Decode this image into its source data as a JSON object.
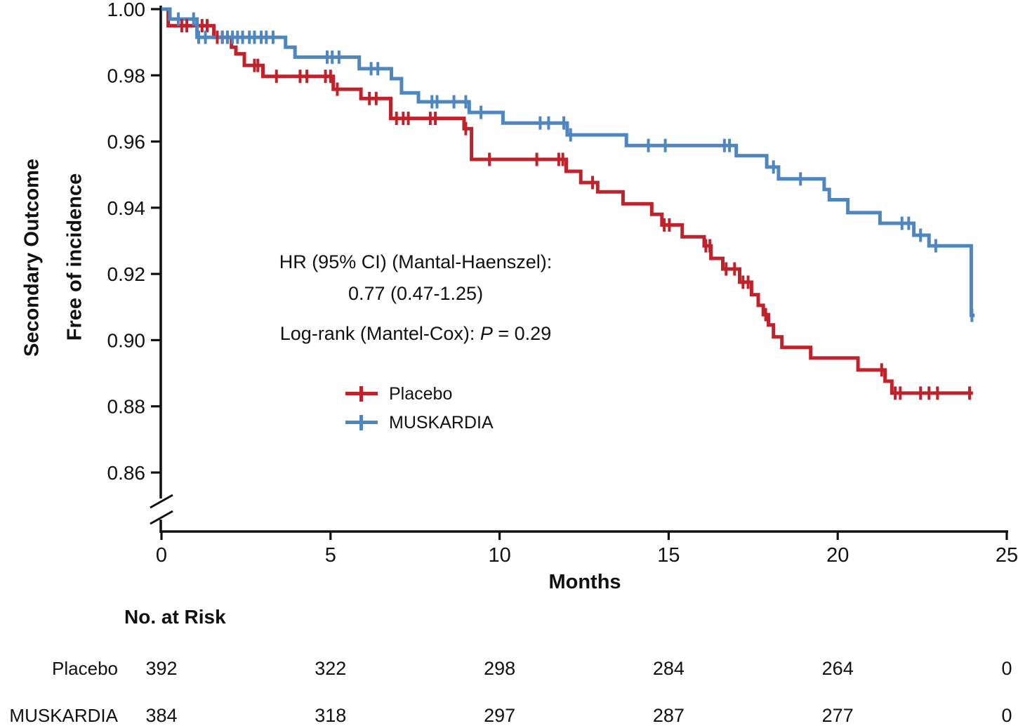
{
  "chart_data": {
    "type": "line",
    "variant": "kaplan_meier_step_curve",
    "title": "",
    "xlabel": "Months",
    "ylabel_line1": "Secondary Outcome",
    "ylabel_line2": "Free of incidence",
    "xlim": [
      0,
      25
    ],
    "ylim_shown": [
      0.86,
      1.0
    ],
    "y_axis_break": true,
    "grid": false,
    "legend_position": "inside-left, below annotation",
    "x_ticks": [
      "0",
      "5",
      "10",
      "15",
      "20",
      "25"
    ],
    "y_ticks": [
      "1.00",
      "0.98",
      "0.96",
      "0.94",
      "0.92",
      "0.90",
      "0.88",
      "0.86"
    ],
    "annotation": {
      "line1": "HR (95% CI) (Mantal-Haenszel):",
      "line2": "0.77 (0.47-1.25)",
      "line3_prefix": "Log-rank (Mantel-Cox): ",
      "line3_italic": "P",
      "line3_suffix": " = 0.29"
    },
    "axis_color": "#111111",
    "series": [
      {
        "name": "Placebo",
        "color": "#c0222b",
        "steps": [
          [
            0,
            1.0
          ],
          [
            0.2,
            0.995
          ],
          [
            1.55,
            0.9915
          ],
          [
            2.07,
            0.9885
          ],
          [
            2.2,
            0.9865
          ],
          [
            2.45,
            0.983
          ],
          [
            3.0,
            0.9797
          ],
          [
            5.08,
            0.9758
          ],
          [
            5.9,
            0.973
          ],
          [
            6.78,
            0.967
          ],
          [
            8.95,
            0.9639
          ],
          [
            9.17,
            0.9546
          ],
          [
            11.97,
            0.951
          ],
          [
            12.4,
            0.9476
          ],
          [
            12.9,
            0.9448
          ],
          [
            13.65,
            0.9412
          ],
          [
            14.5,
            0.938
          ],
          [
            14.8,
            0.9348
          ],
          [
            15.4,
            0.9312
          ],
          [
            16.05,
            0.9285
          ],
          [
            16.25,
            0.9247
          ],
          [
            16.6,
            0.9215
          ],
          [
            17.1,
            0.9175
          ],
          [
            17.45,
            0.9137
          ],
          [
            17.65,
            0.9105
          ],
          [
            17.8,
            0.9077
          ],
          [
            17.95,
            0.9046
          ],
          [
            18.1,
            0.901
          ],
          [
            18.35,
            0.8978
          ],
          [
            19.2,
            0.8946
          ],
          [
            20.6,
            0.891
          ],
          [
            21.4,
            0.8876
          ],
          [
            21.6,
            0.884
          ],
          [
            24.0,
            0.884
          ]
        ],
        "censors": [
          [
            0.6,
            0.995
          ],
          [
            0.75,
            0.995
          ],
          [
            1.2,
            0.995
          ],
          [
            1.35,
            0.995
          ],
          [
            1.65,
            0.9915
          ],
          [
            1.8,
            0.9915
          ],
          [
            1.95,
            0.9915
          ],
          [
            2.75,
            0.983
          ],
          [
            2.85,
            0.983
          ],
          [
            3.4,
            0.9797
          ],
          [
            4.1,
            0.9797
          ],
          [
            4.3,
            0.9797
          ],
          [
            4.85,
            0.9797
          ],
          [
            5.0,
            0.9797
          ],
          [
            5.2,
            0.9758
          ],
          [
            6.15,
            0.973
          ],
          [
            6.35,
            0.973
          ],
          [
            6.95,
            0.967
          ],
          [
            7.15,
            0.967
          ],
          [
            7.3,
            0.967
          ],
          [
            7.95,
            0.967
          ],
          [
            8.1,
            0.967
          ],
          [
            9.0,
            0.9639
          ],
          [
            9.7,
            0.9546
          ],
          [
            11.1,
            0.9546
          ],
          [
            11.75,
            0.9546
          ],
          [
            11.87,
            0.9546
          ],
          [
            12.75,
            0.9476
          ],
          [
            14.87,
            0.9348
          ],
          [
            15.02,
            0.9348
          ],
          [
            16.1,
            0.9285
          ],
          [
            16.22,
            0.9285
          ],
          [
            16.7,
            0.9215
          ],
          [
            16.95,
            0.9215
          ],
          [
            17.2,
            0.9175
          ],
          [
            17.35,
            0.9175
          ],
          [
            17.87,
            0.9077
          ],
          [
            21.3,
            0.891
          ],
          [
            21.7,
            0.884
          ],
          [
            21.85,
            0.884
          ],
          [
            22.45,
            0.884
          ],
          [
            22.7,
            0.884
          ],
          [
            22.95,
            0.884
          ],
          [
            23.9,
            0.884
          ]
        ]
      },
      {
        "name": "MUSKARDIA",
        "color": "#4e86c0",
        "steps": [
          [
            0,
            1.0
          ],
          [
            0.25,
            0.997
          ],
          [
            1.05,
            0.9915
          ],
          [
            3.67,
            0.9885
          ],
          [
            3.95,
            0.9855
          ],
          [
            5.85,
            0.982
          ],
          [
            6.8,
            0.979
          ],
          [
            7.1,
            0.9747
          ],
          [
            7.6,
            0.972
          ],
          [
            9.1,
            0.9688
          ],
          [
            10.1,
            0.9656
          ],
          [
            12.0,
            0.962
          ],
          [
            13.75,
            0.9588
          ],
          [
            17.0,
            0.9557
          ],
          [
            17.9,
            0.9523
          ],
          [
            18.25,
            0.9487
          ],
          [
            19.6,
            0.9455
          ],
          [
            19.75,
            0.9424
          ],
          [
            20.3,
            0.9385
          ],
          [
            21.25,
            0.9353
          ],
          [
            22.25,
            0.9317
          ],
          [
            22.7,
            0.9285
          ],
          [
            23.95,
            0.9075
          ],
          [
            24.05,
            0.9075
          ]
        ],
        "censors": [
          [
            0.5,
            0.997
          ],
          [
            0.95,
            0.997
          ],
          [
            1.1,
            0.9915
          ],
          [
            1.3,
            0.9915
          ],
          [
            1.8,
            0.9915
          ],
          [
            1.95,
            0.9915
          ],
          [
            2.1,
            0.9915
          ],
          [
            2.25,
            0.9915
          ],
          [
            2.4,
            0.9915
          ],
          [
            2.6,
            0.9915
          ],
          [
            2.75,
            0.9915
          ],
          [
            2.95,
            0.9915
          ],
          [
            3.1,
            0.9915
          ],
          [
            3.3,
            0.9915
          ],
          [
            4.9,
            0.9855
          ],
          [
            5.05,
            0.9855
          ],
          [
            5.25,
            0.9855
          ],
          [
            6.2,
            0.982
          ],
          [
            6.4,
            0.982
          ],
          [
            8.0,
            0.972
          ],
          [
            8.15,
            0.972
          ],
          [
            8.65,
            0.972
          ],
          [
            9.0,
            0.972
          ],
          [
            9.45,
            0.9688
          ],
          [
            11.2,
            0.9656
          ],
          [
            11.45,
            0.9656
          ],
          [
            11.9,
            0.9656
          ],
          [
            12.1,
            0.962
          ],
          [
            14.4,
            0.9588
          ],
          [
            14.9,
            0.9588
          ],
          [
            16.65,
            0.9588
          ],
          [
            16.8,
            0.9588
          ],
          [
            18.1,
            0.9523
          ],
          [
            18.9,
            0.9487
          ],
          [
            21.9,
            0.9353
          ],
          [
            22.1,
            0.9353
          ],
          [
            22.45,
            0.9317
          ],
          [
            22.9,
            0.9285
          ],
          [
            23.97,
            0.9075
          ]
        ]
      }
    ],
    "risk_table": {
      "header": "No. at Risk",
      "time_points": [
        0,
        5,
        10,
        15,
        20,
        25
      ],
      "rows": [
        {
          "label": "Placebo",
          "values": [
            "392",
            "322",
            "298",
            "284",
            "264",
            "0"
          ]
        },
        {
          "label": "MUSKARDIA",
          "values": [
            "384",
            "318",
            "297",
            "287",
            "277",
            "0"
          ]
        }
      ]
    }
  }
}
